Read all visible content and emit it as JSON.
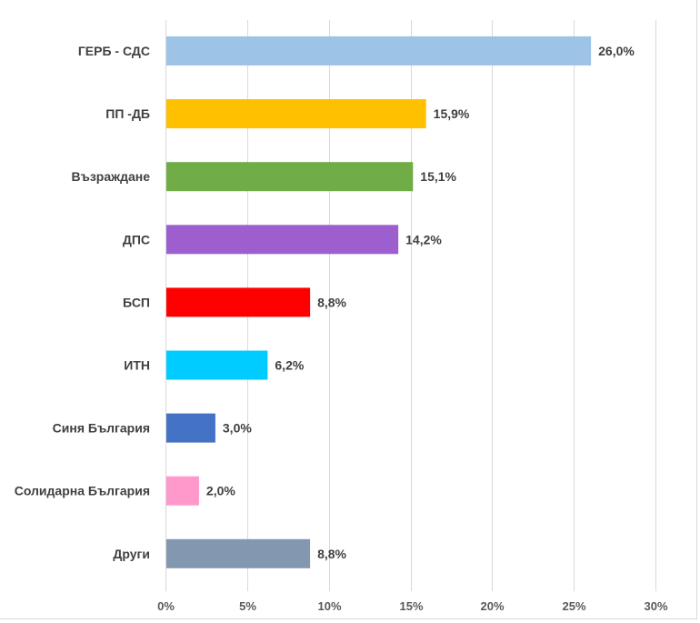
{
  "chart_data": {
    "type": "bar",
    "orientation": "horizontal",
    "title": "",
    "xlabel": "",
    "ylabel": "",
    "categories": [
      "ГЕРБ - СДС",
      "ПП -ДБ",
      "Възраждане",
      "ДПС",
      "БСП",
      "ИТН",
      "Синя България",
      "Солидарна България",
      "Други"
    ],
    "values": [
      26.0,
      15.9,
      15.1,
      14.2,
      8.8,
      6.2,
      3.0,
      2.0,
      8.8
    ],
    "value_labels": [
      "26,0%",
      "15,9%",
      "15,1%",
      "14,2%",
      "8,8%",
      "6,2%",
      "3,0%",
      "2,0%",
      "8,8%"
    ],
    "colors": [
      "#9DC3E6",
      "#FFC000",
      "#70AD47",
      "#9E5FCE",
      "#FF0000",
      "#00CCFF",
      "#4472C4",
      "#FF99CC",
      "#8497B0"
    ],
    "xlim": [
      0,
      30
    ],
    "xticks": [
      0,
      5,
      10,
      15,
      20,
      25,
      30
    ],
    "xtick_labels": [
      "0%",
      "5%",
      "10%",
      "15%",
      "20%",
      "25%",
      "30%"
    ],
    "grid": true,
    "legend": "none"
  }
}
